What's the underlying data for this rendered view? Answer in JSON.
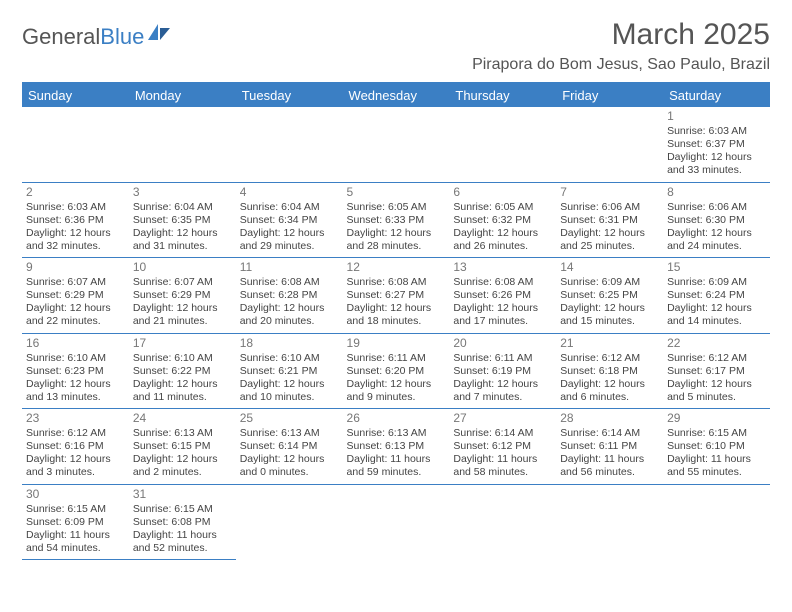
{
  "logo": {
    "text_a": "General",
    "text_b": "Blue"
  },
  "header": {
    "month_title": "March 2025",
    "location": "Pirapora do Bom Jesus, Sao Paulo, Brazil"
  },
  "colors": {
    "accent": "#3b7fc4",
    "header_text": "#ffffff",
    "body_text": "#444444",
    "daynum": "#777777"
  },
  "weekdays": [
    "Sunday",
    "Monday",
    "Tuesday",
    "Wednesday",
    "Thursday",
    "Friday",
    "Saturday"
  ],
  "weeks": [
    [
      {},
      {},
      {},
      {},
      {},
      {},
      {
        "day": "1",
        "sunrise": "Sunrise: 6:03 AM",
        "sunset": "Sunset: 6:37 PM",
        "daylight": "Daylight: 12 hours and 33 minutes."
      }
    ],
    [
      {
        "day": "2",
        "sunrise": "Sunrise: 6:03 AM",
        "sunset": "Sunset: 6:36 PM",
        "daylight": "Daylight: 12 hours and 32 minutes."
      },
      {
        "day": "3",
        "sunrise": "Sunrise: 6:04 AM",
        "sunset": "Sunset: 6:35 PM",
        "daylight": "Daylight: 12 hours and 31 minutes."
      },
      {
        "day": "4",
        "sunrise": "Sunrise: 6:04 AM",
        "sunset": "Sunset: 6:34 PM",
        "daylight": "Daylight: 12 hours and 29 minutes."
      },
      {
        "day": "5",
        "sunrise": "Sunrise: 6:05 AM",
        "sunset": "Sunset: 6:33 PM",
        "daylight": "Daylight: 12 hours and 28 minutes."
      },
      {
        "day": "6",
        "sunrise": "Sunrise: 6:05 AM",
        "sunset": "Sunset: 6:32 PM",
        "daylight": "Daylight: 12 hours and 26 minutes."
      },
      {
        "day": "7",
        "sunrise": "Sunrise: 6:06 AM",
        "sunset": "Sunset: 6:31 PM",
        "daylight": "Daylight: 12 hours and 25 minutes."
      },
      {
        "day": "8",
        "sunrise": "Sunrise: 6:06 AM",
        "sunset": "Sunset: 6:30 PM",
        "daylight": "Daylight: 12 hours and 24 minutes."
      }
    ],
    [
      {
        "day": "9",
        "sunrise": "Sunrise: 6:07 AM",
        "sunset": "Sunset: 6:29 PM",
        "daylight": "Daylight: 12 hours and 22 minutes."
      },
      {
        "day": "10",
        "sunrise": "Sunrise: 6:07 AM",
        "sunset": "Sunset: 6:29 PM",
        "daylight": "Daylight: 12 hours and 21 minutes."
      },
      {
        "day": "11",
        "sunrise": "Sunrise: 6:08 AM",
        "sunset": "Sunset: 6:28 PM",
        "daylight": "Daylight: 12 hours and 20 minutes."
      },
      {
        "day": "12",
        "sunrise": "Sunrise: 6:08 AM",
        "sunset": "Sunset: 6:27 PM",
        "daylight": "Daylight: 12 hours and 18 minutes."
      },
      {
        "day": "13",
        "sunrise": "Sunrise: 6:08 AM",
        "sunset": "Sunset: 6:26 PM",
        "daylight": "Daylight: 12 hours and 17 minutes."
      },
      {
        "day": "14",
        "sunrise": "Sunrise: 6:09 AM",
        "sunset": "Sunset: 6:25 PM",
        "daylight": "Daylight: 12 hours and 15 minutes."
      },
      {
        "day": "15",
        "sunrise": "Sunrise: 6:09 AM",
        "sunset": "Sunset: 6:24 PM",
        "daylight": "Daylight: 12 hours and 14 minutes."
      }
    ],
    [
      {
        "day": "16",
        "sunrise": "Sunrise: 6:10 AM",
        "sunset": "Sunset: 6:23 PM",
        "daylight": "Daylight: 12 hours and 13 minutes."
      },
      {
        "day": "17",
        "sunrise": "Sunrise: 6:10 AM",
        "sunset": "Sunset: 6:22 PM",
        "daylight": "Daylight: 12 hours and 11 minutes."
      },
      {
        "day": "18",
        "sunrise": "Sunrise: 6:10 AM",
        "sunset": "Sunset: 6:21 PM",
        "daylight": "Daylight: 12 hours and 10 minutes."
      },
      {
        "day": "19",
        "sunrise": "Sunrise: 6:11 AM",
        "sunset": "Sunset: 6:20 PM",
        "daylight": "Daylight: 12 hours and 9 minutes."
      },
      {
        "day": "20",
        "sunrise": "Sunrise: 6:11 AM",
        "sunset": "Sunset: 6:19 PM",
        "daylight": "Daylight: 12 hours and 7 minutes."
      },
      {
        "day": "21",
        "sunrise": "Sunrise: 6:12 AM",
        "sunset": "Sunset: 6:18 PM",
        "daylight": "Daylight: 12 hours and 6 minutes."
      },
      {
        "day": "22",
        "sunrise": "Sunrise: 6:12 AM",
        "sunset": "Sunset: 6:17 PM",
        "daylight": "Daylight: 12 hours and 5 minutes."
      }
    ],
    [
      {
        "day": "23",
        "sunrise": "Sunrise: 6:12 AM",
        "sunset": "Sunset: 6:16 PM",
        "daylight": "Daylight: 12 hours and 3 minutes."
      },
      {
        "day": "24",
        "sunrise": "Sunrise: 6:13 AM",
        "sunset": "Sunset: 6:15 PM",
        "daylight": "Daylight: 12 hours and 2 minutes."
      },
      {
        "day": "25",
        "sunrise": "Sunrise: 6:13 AM",
        "sunset": "Sunset: 6:14 PM",
        "daylight": "Daylight: 12 hours and 0 minutes."
      },
      {
        "day": "26",
        "sunrise": "Sunrise: 6:13 AM",
        "sunset": "Sunset: 6:13 PM",
        "daylight": "Daylight: 11 hours and 59 minutes."
      },
      {
        "day": "27",
        "sunrise": "Sunrise: 6:14 AM",
        "sunset": "Sunset: 6:12 PM",
        "daylight": "Daylight: 11 hours and 58 minutes."
      },
      {
        "day": "28",
        "sunrise": "Sunrise: 6:14 AM",
        "sunset": "Sunset: 6:11 PM",
        "daylight": "Daylight: 11 hours and 56 minutes."
      },
      {
        "day": "29",
        "sunrise": "Sunrise: 6:15 AM",
        "sunset": "Sunset: 6:10 PM",
        "daylight": "Daylight: 11 hours and 55 minutes."
      }
    ],
    [
      {
        "day": "30",
        "sunrise": "Sunrise: 6:15 AM",
        "sunset": "Sunset: 6:09 PM",
        "daylight": "Daylight: 11 hours and 54 minutes."
      },
      {
        "day": "31",
        "sunrise": "Sunrise: 6:15 AM",
        "sunset": "Sunset: 6:08 PM",
        "daylight": "Daylight: 11 hours and 52 minutes."
      },
      {},
      {},
      {},
      {},
      {}
    ]
  ]
}
